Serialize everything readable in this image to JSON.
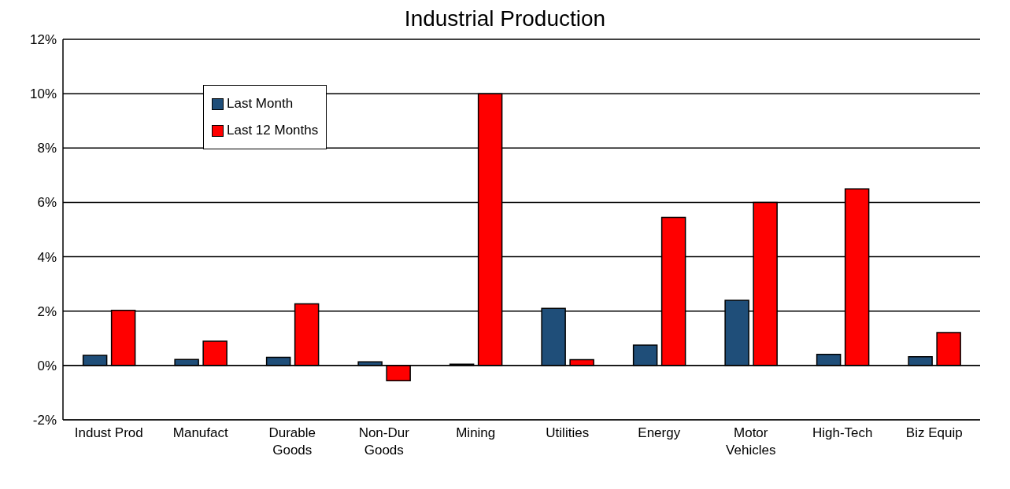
{
  "chart_data": {
    "type": "bar",
    "title": "Industrial Production",
    "categories": [
      "Indust Prod",
      "Manufact",
      "Durable Goods",
      "Non-Dur Goods",
      "Mining",
      "Utilities",
      "Energy",
      "Motor Vehicles",
      "High-Tech",
      "Biz Equip"
    ],
    "series": [
      {
        "name": "Last Month",
        "color": "#1f4e79",
        "values": [
          0.37,
          0.22,
          0.3,
          0.13,
          0.05,
          2.1,
          0.75,
          2.4,
          0.41,
          0.32
        ]
      },
      {
        "name": "Last 12 Months",
        "color": "#ff0000",
        "values": [
          2.03,
          0.89,
          2.27,
          -0.56,
          10.0,
          0.21,
          5.45,
          6.0,
          6.5,
          1.21
        ]
      }
    ],
    "ylim": [
      -2,
      12
    ],
    "yticks": [
      {
        "value": -2,
        "label": "-2%"
      },
      {
        "value": 0,
        "label": "0%"
      },
      {
        "value": 2,
        "label": "2%"
      },
      {
        "value": 4,
        "label": "4%"
      },
      {
        "value": 6,
        "label": "6%"
      },
      {
        "value": 8,
        "label": "8%"
      },
      {
        "value": 10,
        "label": "10%"
      },
      {
        "value": 12,
        "label": "12%"
      }
    ],
    "grid": "y",
    "legend": "top left"
  }
}
